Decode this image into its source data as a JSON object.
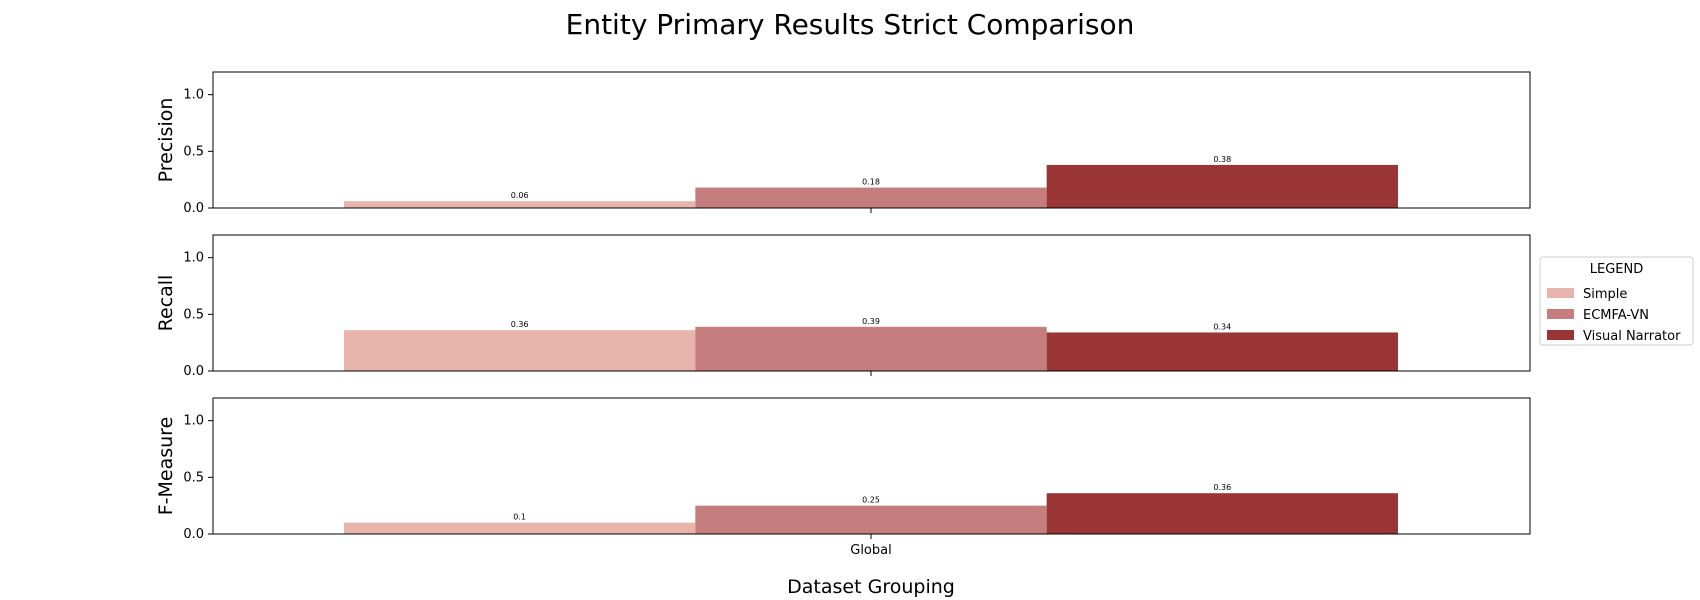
{
  "chart_data": {
    "type": "bar",
    "title": "Entity Primary Results Strict Comparison",
    "xlabel": "Dataset Grouping",
    "categories": [
      "Global"
    ],
    "ylim": [
      0,
      1.2
    ],
    "yticks": [
      "0.0",
      "0.5",
      "1.0"
    ],
    "grid": false,
    "legend": {
      "title": "LEGEND",
      "placement": "right",
      "entries": [
        "Simple",
        "ECMFA-VN",
        "Visual Narrator"
      ]
    },
    "series_colors": [
      "#e8b4ac",
      "#c57d7d",
      "#993535"
    ],
    "panels": [
      {
        "ylabel": "Precision",
        "series": [
          {
            "name": "Simple",
            "values": [
              0.06
            ],
            "label": "0.06"
          },
          {
            "name": "ECMFA-VN",
            "values": [
              0.18
            ],
            "label": "0.18"
          },
          {
            "name": "Visual Narrator",
            "values": [
              0.38
            ],
            "label": "0.38"
          }
        ]
      },
      {
        "ylabel": "Recall",
        "series": [
          {
            "name": "Simple",
            "values": [
              0.36
            ],
            "label": "0.36"
          },
          {
            "name": "ECMFA-VN",
            "values": [
              0.39
            ],
            "label": "0.39"
          },
          {
            "name": "Visual Narrator",
            "values": [
              0.34
            ],
            "label": "0.34"
          }
        ]
      },
      {
        "ylabel": "F-Measure",
        "series": [
          {
            "name": "Simple",
            "values": [
              0.1
            ],
            "label": "0.1"
          },
          {
            "name": "ECMFA-VN",
            "values": [
              0.25
            ],
            "label": "0.25"
          },
          {
            "name": "Visual Narrator",
            "values": [
              0.36
            ],
            "label": "0.36"
          }
        ]
      }
    ]
  }
}
